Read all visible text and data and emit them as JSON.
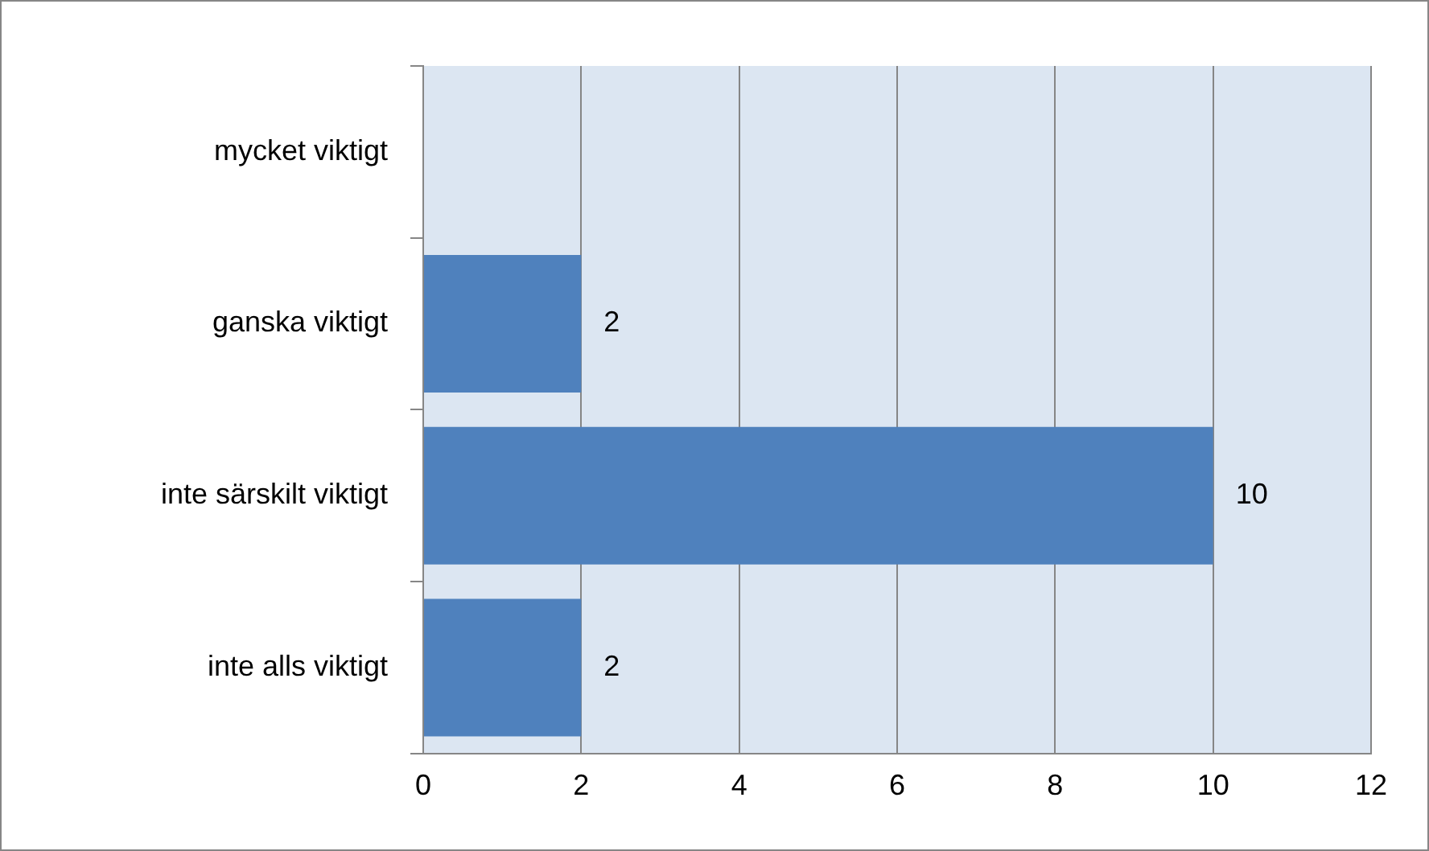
{
  "chart_data": {
    "type": "bar",
    "orientation": "horizontal",
    "categories": [
      "mycket viktigt",
      "ganska viktigt",
      "inte särskilt viktigt",
      "inte alls viktigt"
    ],
    "values": [
      0,
      2,
      10,
      2
    ],
    "value_labels": [
      null,
      "2",
      "10",
      "2"
    ],
    "color": "#4f81bd",
    "xlim": [
      0,
      12
    ],
    "xticks": [
      0,
      2,
      4,
      6,
      8,
      10,
      12
    ],
    "grid": "x",
    "legend": false
  }
}
